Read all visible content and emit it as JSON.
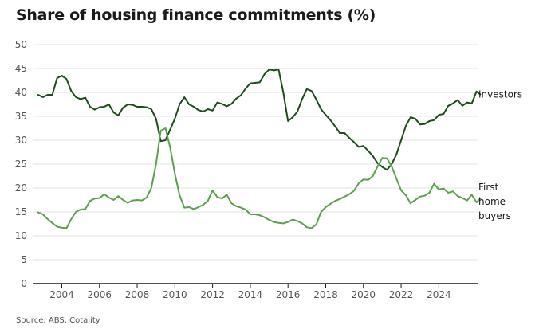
{
  "chart_data": {
    "type": "line",
    "title": "Share of housing finance commitments (%)",
    "source": "Source: ABS, Cotality",
    "xlabel": "",
    "ylabel": "",
    "ylim": [
      0,
      50
    ],
    "xlim": [
      2002.5,
      2026.1
    ],
    "yticks": [
      "0",
      "5",
      "10",
      "15",
      "20",
      "25",
      "30",
      "35",
      "40",
      "45",
      "50"
    ],
    "xticks": [
      "2004",
      "2006",
      "2008",
      "2010",
      "2012",
      "2014",
      "2016",
      "2018",
      "2020",
      "2022",
      "2024"
    ],
    "grid": true,
    "series": [
      {
        "name": "Investors",
        "legend": [
          "Investors"
        ],
        "color": "#1b4d1b",
        "points": [
          [
            2002.75,
            39.5
          ],
          [
            2003.0,
            39.0
          ],
          [
            2003.25,
            39.5
          ],
          [
            2003.5,
            39.5
          ],
          [
            2003.75,
            43.0
          ],
          [
            2004.0,
            43.5
          ],
          [
            2004.25,
            42.8
          ],
          [
            2004.5,
            40.3
          ],
          [
            2004.75,
            39.0
          ],
          [
            2005.0,
            38.6
          ],
          [
            2005.25,
            38.9
          ],
          [
            2005.5,
            37.0
          ],
          [
            2005.75,
            36.4
          ],
          [
            2006.0,
            36.9
          ],
          [
            2006.25,
            37.0
          ],
          [
            2006.5,
            37.5
          ],
          [
            2006.75,
            35.8
          ],
          [
            2007.0,
            35.2
          ],
          [
            2007.25,
            36.8
          ],
          [
            2007.5,
            37.5
          ],
          [
            2007.75,
            37.4
          ],
          [
            2008.0,
            37.0
          ],
          [
            2008.25,
            37.0
          ],
          [
            2008.5,
            36.9
          ],
          [
            2008.75,
            36.5
          ],
          [
            2009.0,
            34.5
          ],
          [
            2009.25,
            29.8
          ],
          [
            2009.5,
            30.0
          ],
          [
            2009.75,
            32.2
          ],
          [
            2010.0,
            34.5
          ],
          [
            2010.25,
            37.5
          ],
          [
            2010.5,
            39.0
          ],
          [
            2010.75,
            37.5
          ],
          [
            2011.0,
            37.0
          ],
          [
            2011.25,
            36.3
          ],
          [
            2011.5,
            36.0
          ],
          [
            2011.75,
            36.5
          ],
          [
            2012.0,
            36.2
          ],
          [
            2012.25,
            37.9
          ],
          [
            2012.5,
            37.6
          ],
          [
            2012.75,
            37.1
          ],
          [
            2013.0,
            37.6
          ],
          [
            2013.25,
            38.7
          ],
          [
            2013.5,
            39.4
          ],
          [
            2013.75,
            40.8
          ],
          [
            2014.0,
            41.9
          ],
          [
            2014.25,
            42.0
          ],
          [
            2014.5,
            42.1
          ],
          [
            2014.75,
            43.8
          ],
          [
            2015.0,
            44.8
          ],
          [
            2015.25,
            44.6
          ],
          [
            2015.5,
            44.8
          ],
          [
            2015.75,
            40.0
          ],
          [
            2016.0,
            34.0
          ],
          [
            2016.25,
            34.8
          ],
          [
            2016.5,
            36.0
          ],
          [
            2016.75,
            38.6
          ],
          [
            2017.0,
            40.7
          ],
          [
            2017.25,
            40.3
          ],
          [
            2017.5,
            38.5
          ],
          [
            2017.75,
            36.5
          ],
          [
            2018.0,
            35.3
          ],
          [
            2018.25,
            34.2
          ],
          [
            2018.5,
            32.9
          ],
          [
            2018.75,
            31.5
          ],
          [
            2019.0,
            31.5
          ],
          [
            2019.25,
            30.5
          ],
          [
            2019.5,
            29.6
          ],
          [
            2019.75,
            28.6
          ],
          [
            2020.0,
            28.8
          ],
          [
            2020.25,
            27.8
          ],
          [
            2020.5,
            26.7
          ],
          [
            2020.75,
            25.2
          ],
          [
            2021.0,
            24.4
          ],
          [
            2021.25,
            23.8
          ],
          [
            2021.5,
            25.0
          ],
          [
            2021.75,
            27.0
          ],
          [
            2022.0,
            30.0
          ],
          [
            2022.25,
            33.0
          ],
          [
            2022.5,
            34.8
          ],
          [
            2022.75,
            34.5
          ],
          [
            2023.0,
            33.3
          ],
          [
            2023.25,
            33.4
          ],
          [
            2023.5,
            34.0
          ],
          [
            2023.75,
            34.2
          ],
          [
            2024.0,
            35.3
          ],
          [
            2024.25,
            35.5
          ],
          [
            2024.5,
            37.2
          ],
          [
            2024.75,
            37.7
          ],
          [
            2025.0,
            38.4
          ],
          [
            2025.25,
            37.2
          ],
          [
            2025.5,
            37.9
          ],
          [
            2025.75,
            37.7
          ],
          [
            2026.0,
            40.2
          ],
          [
            2026.2,
            39.6
          ]
        ]
      },
      {
        "name": "First home buyers",
        "legend": [
          "First",
          "home",
          "buyers"
        ],
        "color": "#5aa14c",
        "points": [
          [
            2002.75,
            14.9
          ],
          [
            2003.0,
            14.5
          ],
          [
            2003.25,
            13.5
          ],
          [
            2003.5,
            12.7
          ],
          [
            2003.75,
            11.9
          ],
          [
            2004.0,
            11.7
          ],
          [
            2004.25,
            11.6
          ],
          [
            2004.5,
            13.5
          ],
          [
            2004.75,
            15.0
          ],
          [
            2005.0,
            15.5
          ],
          [
            2005.25,
            15.6
          ],
          [
            2005.5,
            17.3
          ],
          [
            2005.75,
            17.8
          ],
          [
            2006.0,
            17.9
          ],
          [
            2006.25,
            18.7
          ],
          [
            2006.5,
            18.0
          ],
          [
            2006.75,
            17.5
          ],
          [
            2007.0,
            18.3
          ],
          [
            2007.25,
            17.5
          ],
          [
            2007.5,
            16.9
          ],
          [
            2007.75,
            17.4
          ],
          [
            2008.0,
            17.5
          ],
          [
            2008.25,
            17.4
          ],
          [
            2008.5,
            18.0
          ],
          [
            2008.75,
            20.0
          ],
          [
            2009.0,
            25.0
          ],
          [
            2009.25,
            32.0
          ],
          [
            2009.5,
            32.5
          ],
          [
            2009.75,
            28.5
          ],
          [
            2010.0,
            23.0
          ],
          [
            2010.25,
            18.5
          ],
          [
            2010.5,
            15.9
          ],
          [
            2010.75,
            16.0
          ],
          [
            2011.0,
            15.6
          ],
          [
            2011.25,
            16.0
          ],
          [
            2011.5,
            16.5
          ],
          [
            2011.75,
            17.3
          ],
          [
            2012.0,
            19.5
          ],
          [
            2012.25,
            18.1
          ],
          [
            2012.5,
            17.8
          ],
          [
            2012.75,
            18.6
          ],
          [
            2013.0,
            16.8
          ],
          [
            2013.25,
            16.2
          ],
          [
            2013.5,
            15.9
          ],
          [
            2013.75,
            15.5
          ],
          [
            2014.0,
            14.5
          ],
          [
            2014.25,
            14.5
          ],
          [
            2014.5,
            14.3
          ],
          [
            2014.75,
            13.9
          ],
          [
            2015.0,
            13.3
          ],
          [
            2015.25,
            12.9
          ],
          [
            2015.5,
            12.7
          ],
          [
            2015.75,
            12.6
          ],
          [
            2016.0,
            12.9
          ],
          [
            2016.25,
            13.4
          ],
          [
            2016.5,
            13.1
          ],
          [
            2016.75,
            12.6
          ],
          [
            2017.0,
            11.8
          ],
          [
            2017.25,
            11.6
          ],
          [
            2017.5,
            12.4
          ],
          [
            2017.75,
            15.0
          ],
          [
            2018.0,
            16.0
          ],
          [
            2018.25,
            16.7
          ],
          [
            2018.5,
            17.3
          ],
          [
            2018.75,
            17.7
          ],
          [
            2019.0,
            18.2
          ],
          [
            2019.25,
            18.7
          ],
          [
            2019.5,
            19.4
          ],
          [
            2019.75,
            21.0
          ],
          [
            2020.0,
            21.8
          ],
          [
            2020.25,
            21.7
          ],
          [
            2020.5,
            22.5
          ],
          [
            2020.75,
            24.5
          ],
          [
            2021.0,
            26.3
          ],
          [
            2021.25,
            26.2
          ],
          [
            2021.5,
            24.5
          ],
          [
            2021.75,
            22.0
          ],
          [
            2022.0,
            19.5
          ],
          [
            2022.25,
            18.5
          ],
          [
            2022.5,
            16.8
          ],
          [
            2022.75,
            17.5
          ],
          [
            2023.0,
            18.2
          ],
          [
            2023.25,
            18.4
          ],
          [
            2023.5,
            19.0
          ],
          [
            2023.75,
            20.9
          ],
          [
            2024.0,
            19.7
          ],
          [
            2024.25,
            19.9
          ],
          [
            2024.5,
            19.0
          ],
          [
            2024.75,
            19.3
          ],
          [
            2025.0,
            18.3
          ],
          [
            2025.25,
            17.9
          ],
          [
            2025.5,
            17.4
          ],
          [
            2025.75,
            18.6
          ],
          [
            2026.0,
            17.0
          ],
          [
            2026.2,
            17.8
          ]
        ]
      }
    ]
  }
}
